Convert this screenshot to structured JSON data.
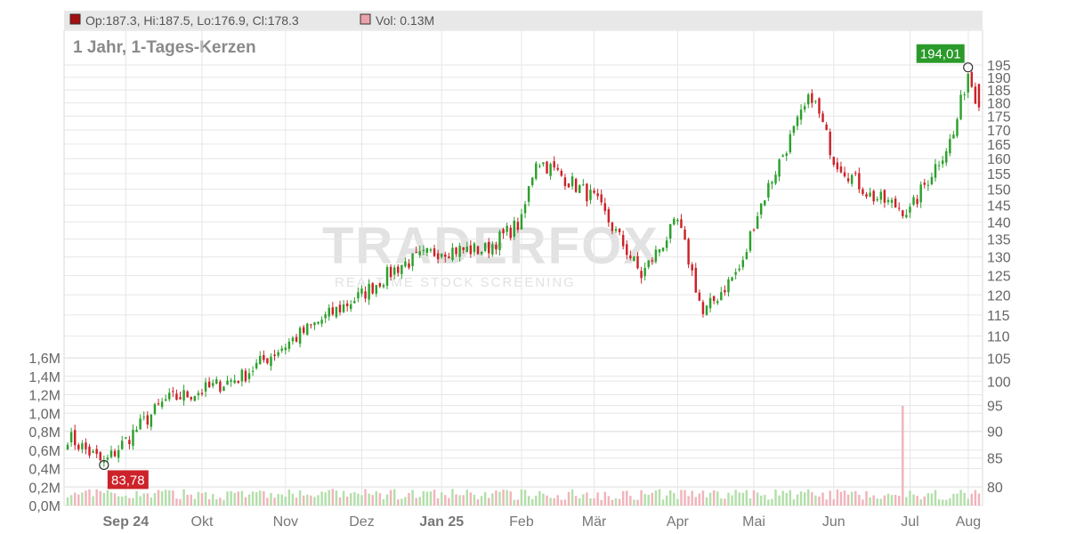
{
  "header": {
    "ohlc_text": "Op:187.3, Hi:187.5, Lo:176.9, Cl:178.3",
    "vol_text": "Vol: 0.13M",
    "ohlc_color": "#a50f0f",
    "vol_color": "#eba2aa"
  },
  "watermark": {
    "brand": "TRADERFOX",
    "tagline": "REALTIME STOCK SCREENING"
  },
  "colors": {
    "up": "#2ca02c",
    "down": "#cc2229",
    "vol_up": "#b3dfaa",
    "vol_down": "#f0b4bb",
    "grid": "#e6e6e6",
    "header_bg": "#e8e8e8",
    "high_flag": "#2a9a2a",
    "low_flag": "#cc2229"
  },
  "chart_data": {
    "type": "candlestick",
    "title": "1 Jahr, 1-Tages-Kerzen",
    "y_scale": "log",
    "price_ticks": [
      80,
      85,
      90,
      95,
      100,
      105,
      110,
      115,
      120,
      125,
      130,
      135,
      140,
      145,
      150,
      155,
      160,
      165,
      170,
      175,
      180,
      185,
      190,
      195
    ],
    "volume_ticks": [
      "0,0M",
      "0,2M",
      "0,4M",
      "0,6M",
      "0,8M",
      "1,0M",
      "1,2M",
      "1,4M",
      "1,6M"
    ],
    "volume_range": [
      0,
      1.6
    ],
    "x_labels": [
      {
        "label": "Sep 24",
        "bold": true
      },
      {
        "label": "Okt",
        "bold": false
      },
      {
        "label": "Nov",
        "bold": false
      },
      {
        "label": "Dez",
        "bold": false
      },
      {
        "label": "Jan 25",
        "bold": true
      },
      {
        "label": "Feb",
        "bold": false
      },
      {
        "label": "Mär",
        "bold": false
      },
      {
        "label": "Apr",
        "bold": false
      },
      {
        "label": "Mai",
        "bold": false
      },
      {
        "label": "Jun",
        "bold": false
      },
      {
        "label": "Jul",
        "bold": false
      },
      {
        "label": "Aug",
        "bold": false
      }
    ],
    "high_marker": {
      "value": 194.01,
      "label": "194,01"
    },
    "low_marker": {
      "value": 83.78,
      "label": "83,78"
    },
    "last_candle": {
      "open": 187.3,
      "high": 187.5,
      "low": 176.9,
      "close": 178.3,
      "volume_m": 0.13
    },
    "close_path": [
      {
        "t": "Aug 24",
        "close": 89
      },
      {
        "t": "Sep 24 start",
        "close": 84
      },
      {
        "t": "Sep 24 mid",
        "close": 96
      },
      {
        "t": "Okt",
        "close": 98
      },
      {
        "t": "Okt mid",
        "close": 101
      },
      {
        "t": "Nov",
        "close": 108
      },
      {
        "t": "Nov mid",
        "close": 115
      },
      {
        "t": "Dez",
        "close": 120
      },
      {
        "t": "Dez mid",
        "close": 128
      },
      {
        "t": "Jan 25",
        "close": 132
      },
      {
        "t": "Jan 25 mid",
        "close": 132
      },
      {
        "t": "Feb",
        "close": 140
      },
      {
        "t": "Feb peak",
        "close": 160
      },
      {
        "t": "Mär",
        "close": 147
      },
      {
        "t": "Mär low",
        "close": 125
      },
      {
        "t": "Mär/Apr",
        "close": 140
      },
      {
        "t": "Apr low",
        "close": 115
      },
      {
        "t": "Apr late",
        "close": 128
      },
      {
        "t": "Mai",
        "close": 140
      },
      {
        "t": "Mai peak",
        "close": 183
      },
      {
        "t": "Jun",
        "close": 160
      },
      {
        "t": "Jun mid",
        "close": 148
      },
      {
        "t": "Jul",
        "close": 143
      },
      {
        "t": "Jul mid",
        "close": 168
      },
      {
        "t": "Aug",
        "close": 192
      },
      {
        "t": "last",
        "close": 178.3
      }
    ],
    "volume_spike": {
      "t": "Jul",
      "volume_m": 1.08
    }
  }
}
